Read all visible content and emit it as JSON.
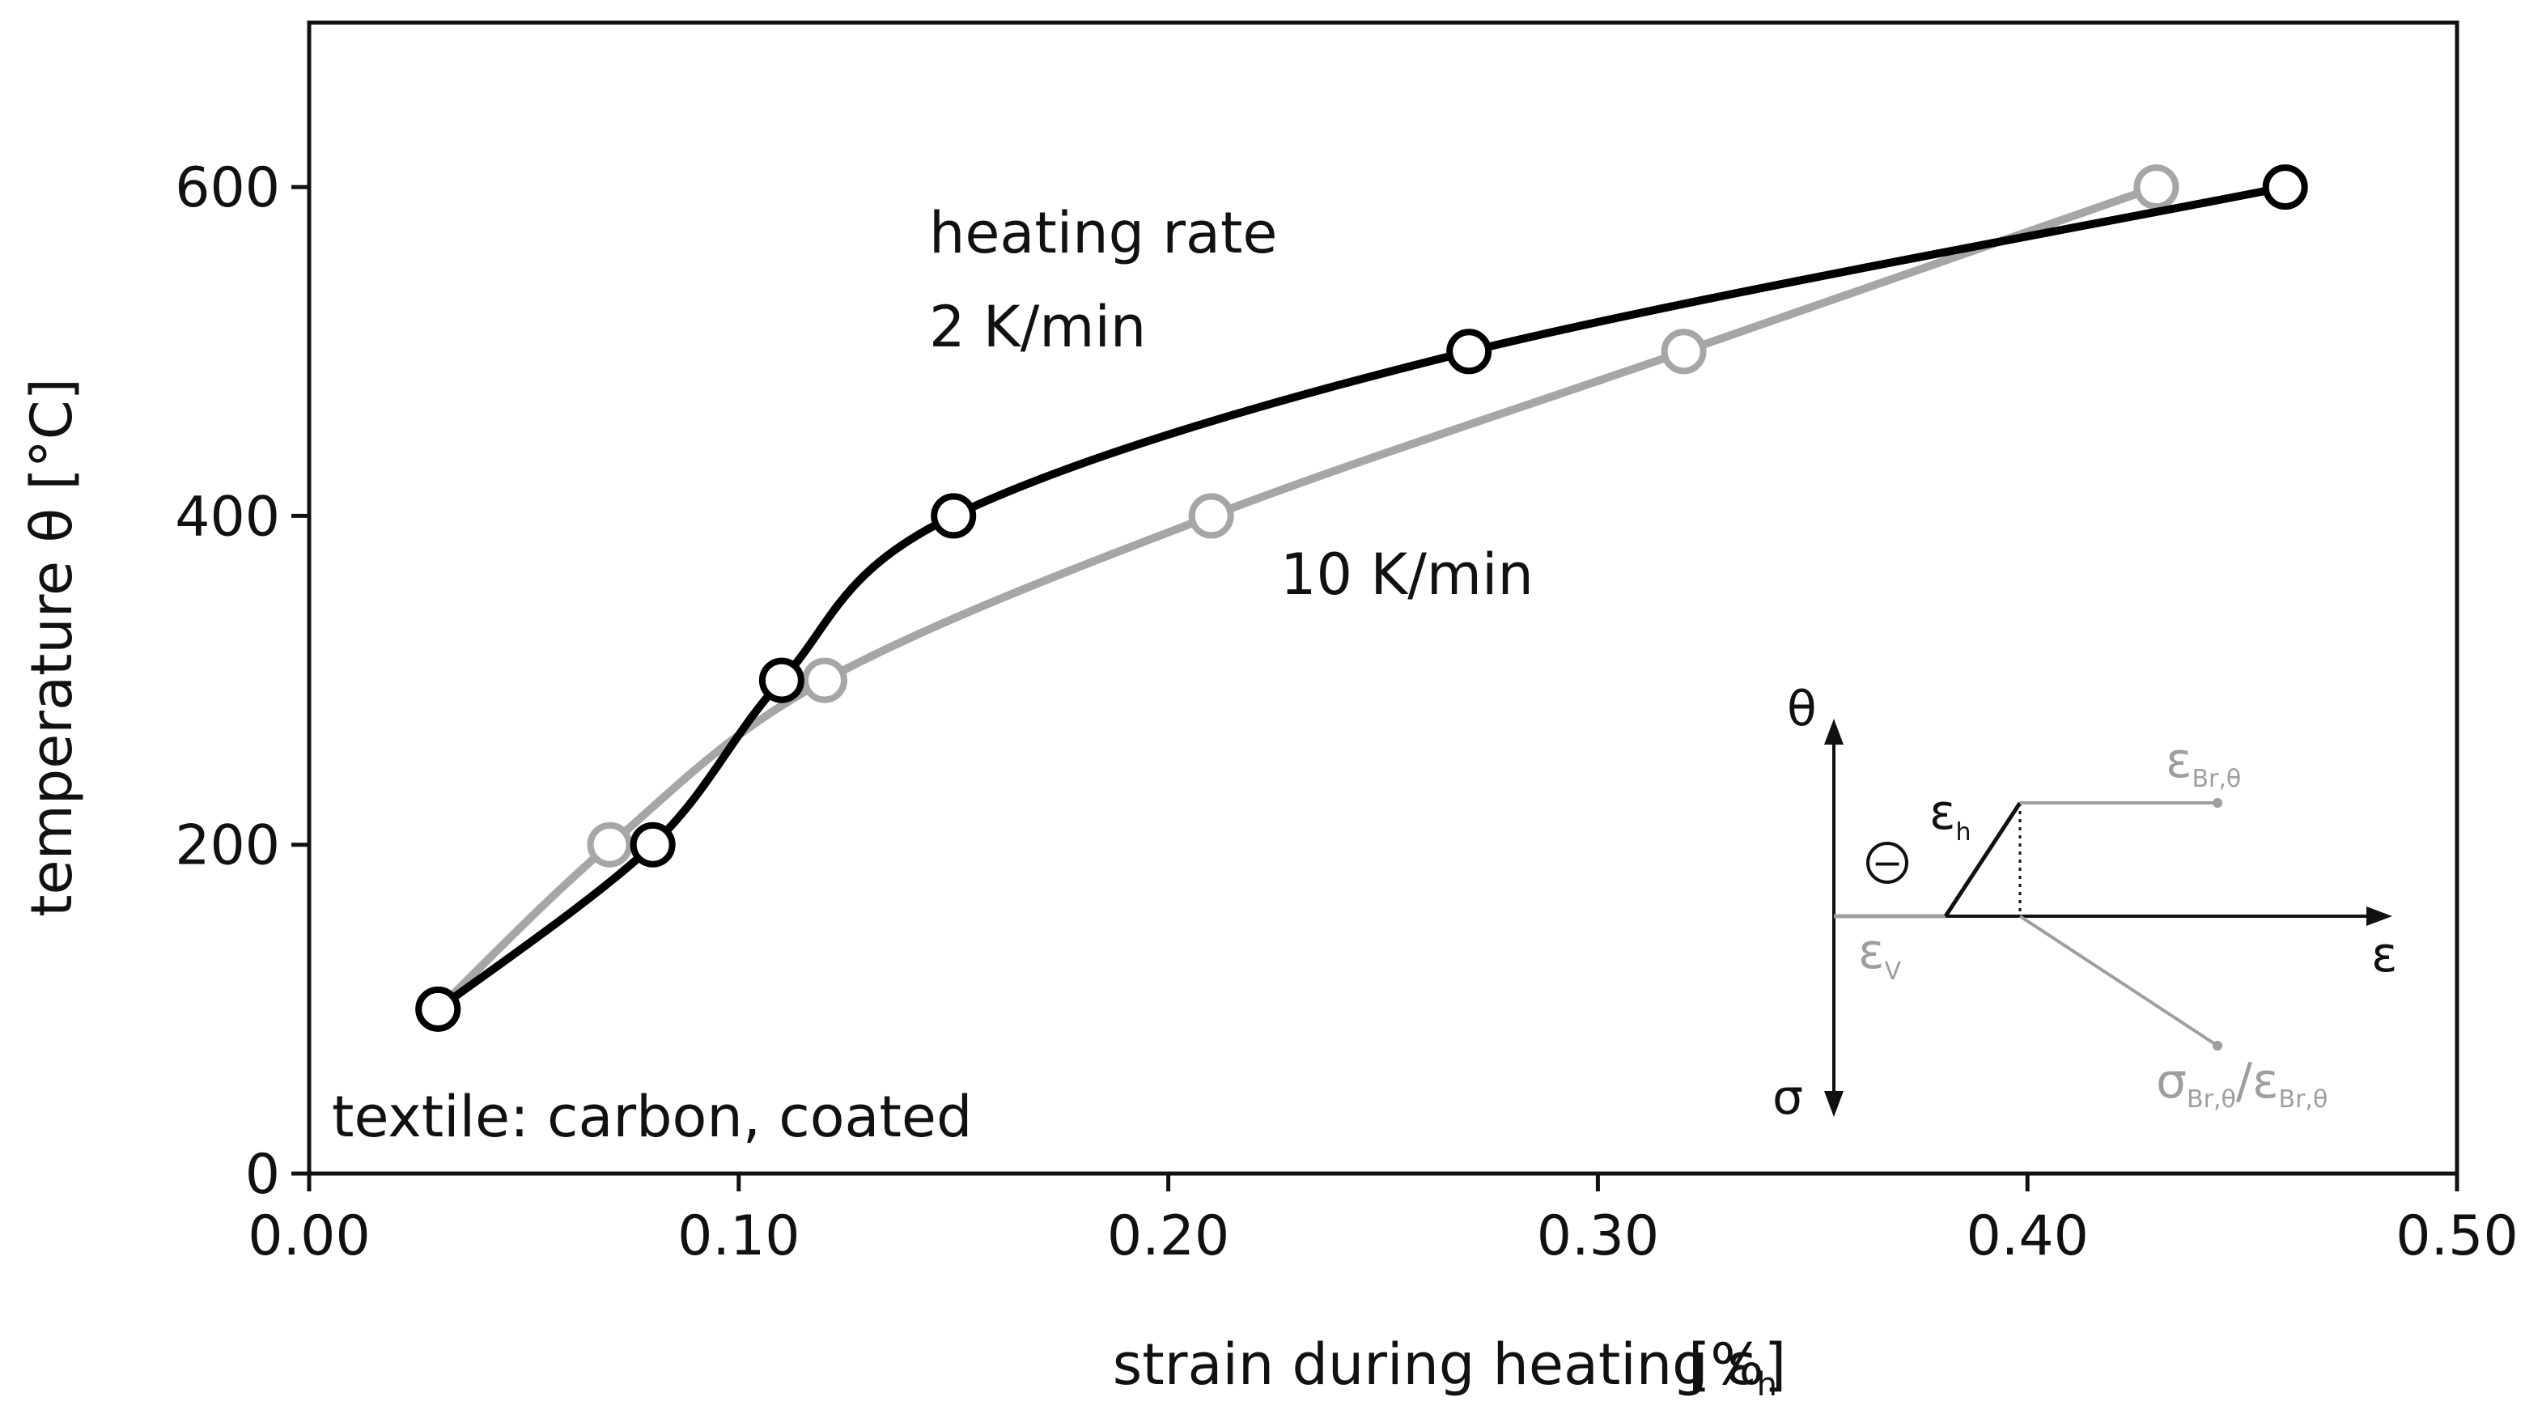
{
  "chart_data": {
    "type": "line",
    "title": "",
    "xlabel": "strain during heating ε",
    "xlabel_sub": "h",
    "xlabel_unit": "[%]",
    "ylabel": "temperature θ [°C]",
    "xlim": [
      0.0,
      0.5
    ],
    "ylim": [
      0,
      700
    ],
    "x_ticks": [
      0.0,
      0.1,
      0.2,
      0.3,
      0.4,
      0.5
    ],
    "x_tick_labels": [
      "0.00",
      "0.10",
      "0.20",
      "0.30",
      "0.40",
      "0.50"
    ],
    "y_ticks": [
      0,
      200,
      400,
      600
    ],
    "y_tick_labels": [
      "0",
      "200",
      "400",
      "600"
    ],
    "grid": false,
    "series": [
      {
        "name": "2 K/min",
        "color": "#000000",
        "x": [
          0.03,
          0.08,
          0.11,
          0.15,
          0.27,
          0.46
        ],
        "y": [
          100,
          200,
          300,
          400,
          500,
          600
        ]
      },
      {
        "name": "10 K/min",
        "color": "#a6a6a6",
        "x": [
          0.03,
          0.07,
          0.12,
          0.21,
          0.32,
          0.43
        ],
        "y": [
          100,
          200,
          300,
          400,
          500,
          600
        ]
      }
    ],
    "annotations": {
      "heating_rate_line1": "heating rate",
      "heating_rate_line2": "2 K/min",
      "label_10k": "10 K/min",
      "textile": "textile: carbon, coated"
    },
    "inset": {
      "theta": "θ",
      "sigma": "σ",
      "epsilon": "ε",
      "eps_h": "ε",
      "eps_h_sub": "h",
      "eps_v": "ε",
      "eps_v_sub": "V",
      "minus": "−",
      "eps_br": "ε",
      "eps_br_sub": "Br,θ",
      "sigma_br": "σ",
      "sigma_br_sub": "Br,θ",
      "slash": "/",
      "eps_br2": "ε",
      "eps_br2_sub": "Br,θ"
    }
  }
}
